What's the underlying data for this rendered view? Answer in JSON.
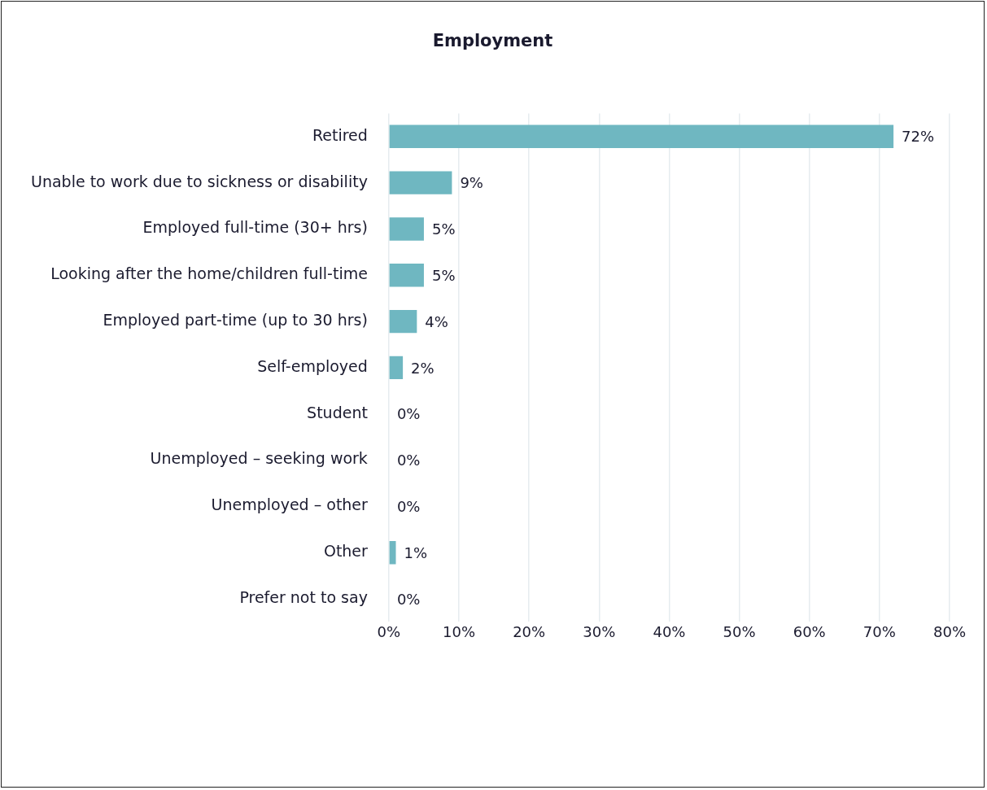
{
  "chart_data": {
    "type": "bar",
    "orientation": "horizontal",
    "title": "Employment",
    "categories": [
      "Retired",
      "Unable to work due to sickness or disability",
      "Employed full-time (30+ hrs)",
      "Looking after the home/children full-time",
      "Employed part-time (up to 30 hrs)",
      "Self-employed",
      "Student",
      "Unemployed – seeking work",
      "Unemployed – other",
      "Other",
      "Prefer not to say"
    ],
    "values": [
      72,
      9,
      5,
      5,
      4,
      2,
      0,
      0,
      0,
      1,
      0
    ],
    "value_labels": [
      "72%",
      "9%",
      "5%",
      "5%",
      "4%",
      "2%",
      "0%",
      "0%",
      "0%",
      "1%",
      "0%"
    ],
    "color": "#6fb7c1",
    "xlim": [
      0,
      80
    ],
    "xticks": [
      {
        "value": 0,
        "label": "0%"
      },
      {
        "value": 10,
        "label": "10%"
      },
      {
        "value": 20,
        "label": "20%"
      },
      {
        "value": 30,
        "label": "30%"
      },
      {
        "value": 40,
        "label": "40%"
      },
      {
        "value": 50,
        "label": "50%"
      },
      {
        "value": 60,
        "label": "60%"
      },
      {
        "value": 70,
        "label": "70%"
      },
      {
        "value": 80,
        "label": "80%"
      }
    ],
    "grid": "x",
    "legend": false
  }
}
